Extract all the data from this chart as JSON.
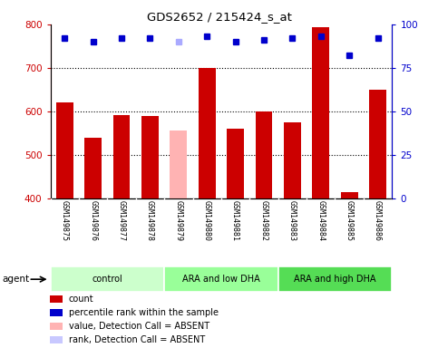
{
  "title": "GDS2652 / 215424_s_at",
  "samples": [
    "GSM149875",
    "GSM149876",
    "GSM149877",
    "GSM149878",
    "GSM149879",
    "GSM149880",
    "GSM149881",
    "GSM149882",
    "GSM149883",
    "GSM149884",
    "GSM149885",
    "GSM149886"
  ],
  "bar_values": [
    620,
    540,
    592,
    590,
    557,
    700,
    560,
    600,
    575,
    793,
    415,
    650
  ],
  "bar_colors": [
    "#cc0000",
    "#cc0000",
    "#cc0000",
    "#cc0000",
    "#ffb3b3",
    "#cc0000",
    "#cc0000",
    "#cc0000",
    "#cc0000",
    "#cc0000",
    "#cc0000",
    "#cc0000"
  ],
  "dot_values": [
    92,
    90,
    92,
    92,
    90,
    93,
    90,
    91,
    92,
    93,
    82,
    92
  ],
  "dot_colors": [
    "#0000cc",
    "#0000cc",
    "#0000cc",
    "#0000cc",
    "#aaaaff",
    "#0000cc",
    "#0000cc",
    "#0000cc",
    "#0000cc",
    "#0000cc",
    "#0000cc",
    "#0000cc"
  ],
  "ylim_left": [
    400,
    800
  ],
  "ylim_right": [
    0,
    100
  ],
  "yticks_left": [
    400,
    500,
    600,
    700,
    800
  ],
  "yticks_right": [
    0,
    25,
    50,
    75,
    100
  ],
  "groups": [
    {
      "label": "control",
      "start": 0,
      "end": 4,
      "color": "#ccffcc"
    },
    {
      "label": "ARA and low DHA",
      "start": 4,
      "end": 8,
      "color": "#99ff99"
    },
    {
      "label": "ARA and high DHA",
      "start": 8,
      "end": 12,
      "color": "#55dd55"
    }
  ],
  "agent_label": "agent",
  "bar_width": 0.6,
  "legend_items": [
    {
      "color": "#cc0000",
      "label": "count"
    },
    {
      "color": "#0000cc",
      "label": "percentile rank within the sample"
    },
    {
      "color": "#ffb3b3",
      "label": "value, Detection Call = ABSENT"
    },
    {
      "color": "#c8c8ff",
      "label": "rank, Detection Call = ABSENT"
    }
  ]
}
